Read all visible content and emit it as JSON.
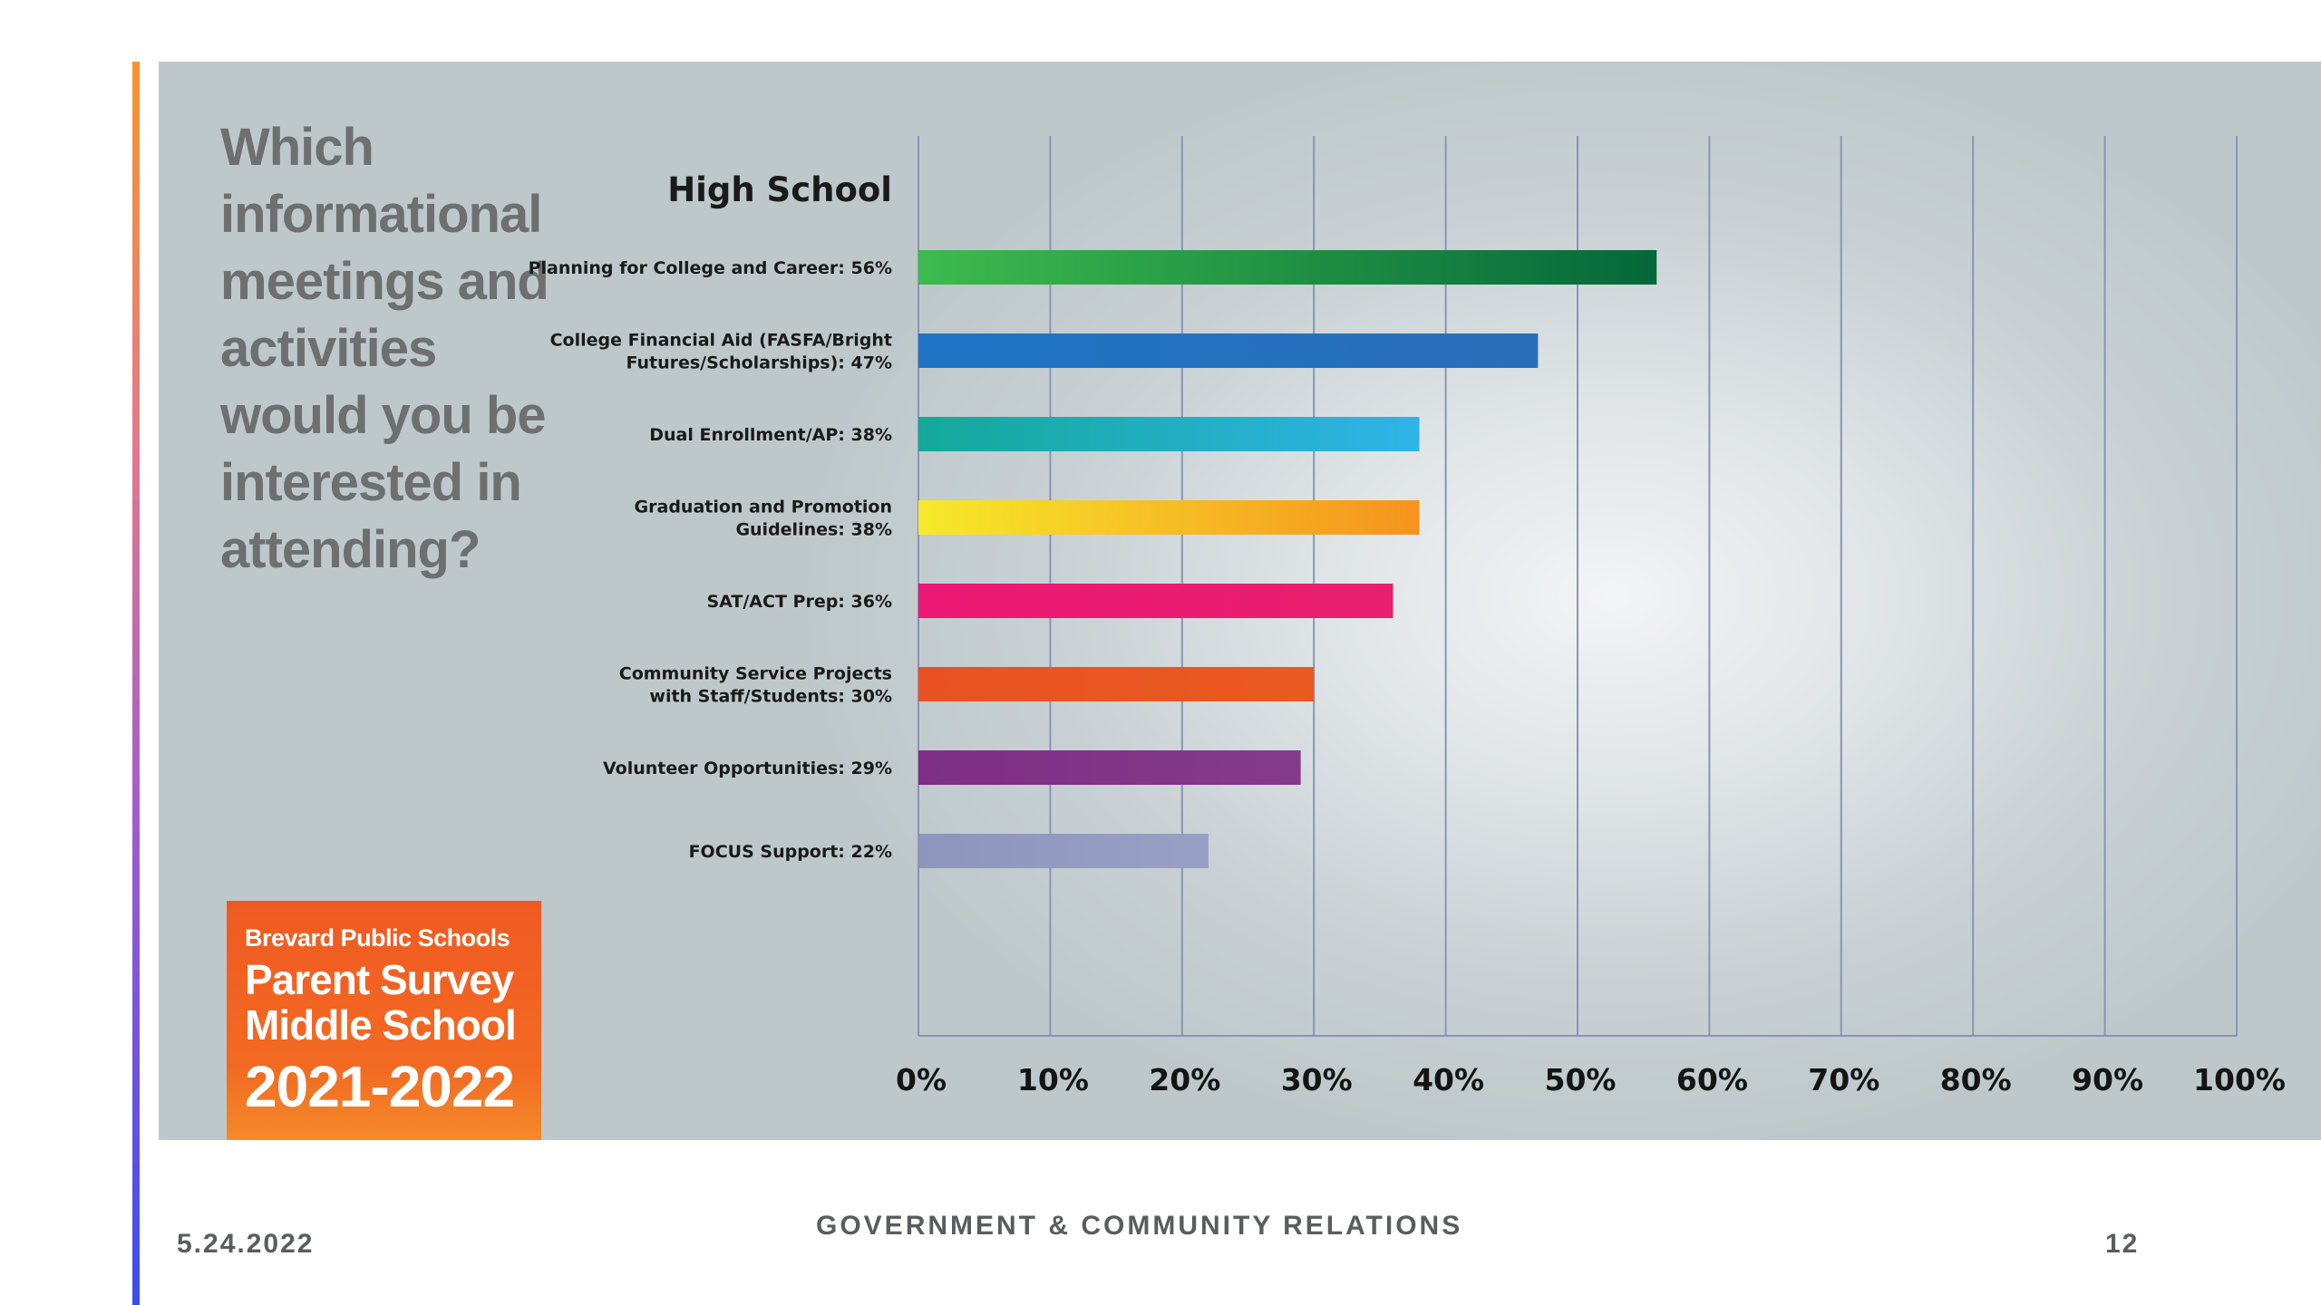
{
  "slide": {
    "question": "Which informational meetings and activities would you be interested in attending?",
    "date": "5.24.2022",
    "organization": "GOVERNMENT & COMMUNITY RELATIONS",
    "page_number": "12"
  },
  "badge": {
    "line1": "Brevard Public Schools",
    "line2": "Parent Survey",
    "line3": "Middle School",
    "line4": "2021-2022"
  },
  "colors": {
    "accent_gradient": [
      "#f7942a",
      "#a45ccc",
      "#3b4cf0"
    ],
    "badge_orange": "#f05a22",
    "gridline": "#8b93b8",
    "title_gray": "#6d6f71"
  },
  "chart_data": {
    "type": "bar",
    "orientation": "horizontal",
    "title": "High School",
    "categories": [
      "Planning for College and Career: 56%",
      "College Financial Aid (FASFA/Bright Futures/Scholarships): 47%",
      "Dual Enrollment/AP: 38%",
      "Graduation and Promotion Guidelines: 38%",
      "SAT/ACT Prep: 36%",
      "Community Service Projects with Staff/Students: 30%",
      "Volunteer Opportunities: 29%",
      "FOCUS Support: 22%"
    ],
    "category_label_lines": [
      [
        "Planning for College and Career: 56%"
      ],
      [
        "College Financial Aid (FASFA/Bright",
        "Futures/Scholarships): 47%"
      ],
      [
        "Dual Enrollment/AP: 38%"
      ],
      [
        "Graduation and Promotion",
        "Guidelines: 38%"
      ],
      [
        "SAT/ACT Prep: 36%"
      ],
      [
        "Community Service Projects",
        "with Staff/Students: 30%"
      ],
      [
        "Volunteer Opportunities: 29%"
      ],
      [
        "FOCUS Support: 22%"
      ]
    ],
    "values": [
      56,
      47,
      38,
      38,
      36,
      30,
      29,
      22
    ],
    "bar_gradients": [
      [
        "#3dbb4e",
        "#05673a"
      ],
      [
        "#1f74c6",
        "#2a6fba"
      ],
      [
        "#13a99a",
        "#2fb4e8"
      ],
      [
        "#f6e92a",
        "#f5931e"
      ],
      [
        "#ec1874",
        "#e81f6e"
      ],
      [
        "#e85222",
        "#ea5a20"
      ],
      [
        "#7e2e85",
        "#843a8c"
      ],
      [
        "#8d95bd",
        "#98a0c6"
      ]
    ],
    "xlim": [
      0,
      100
    ],
    "xticks": [
      "0%",
      "10%",
      "20%",
      "30%",
      "40%",
      "50%",
      "60%",
      "70%",
      "80%",
      "90%",
      "100%"
    ],
    "grid": true,
    "legend": "none"
  }
}
